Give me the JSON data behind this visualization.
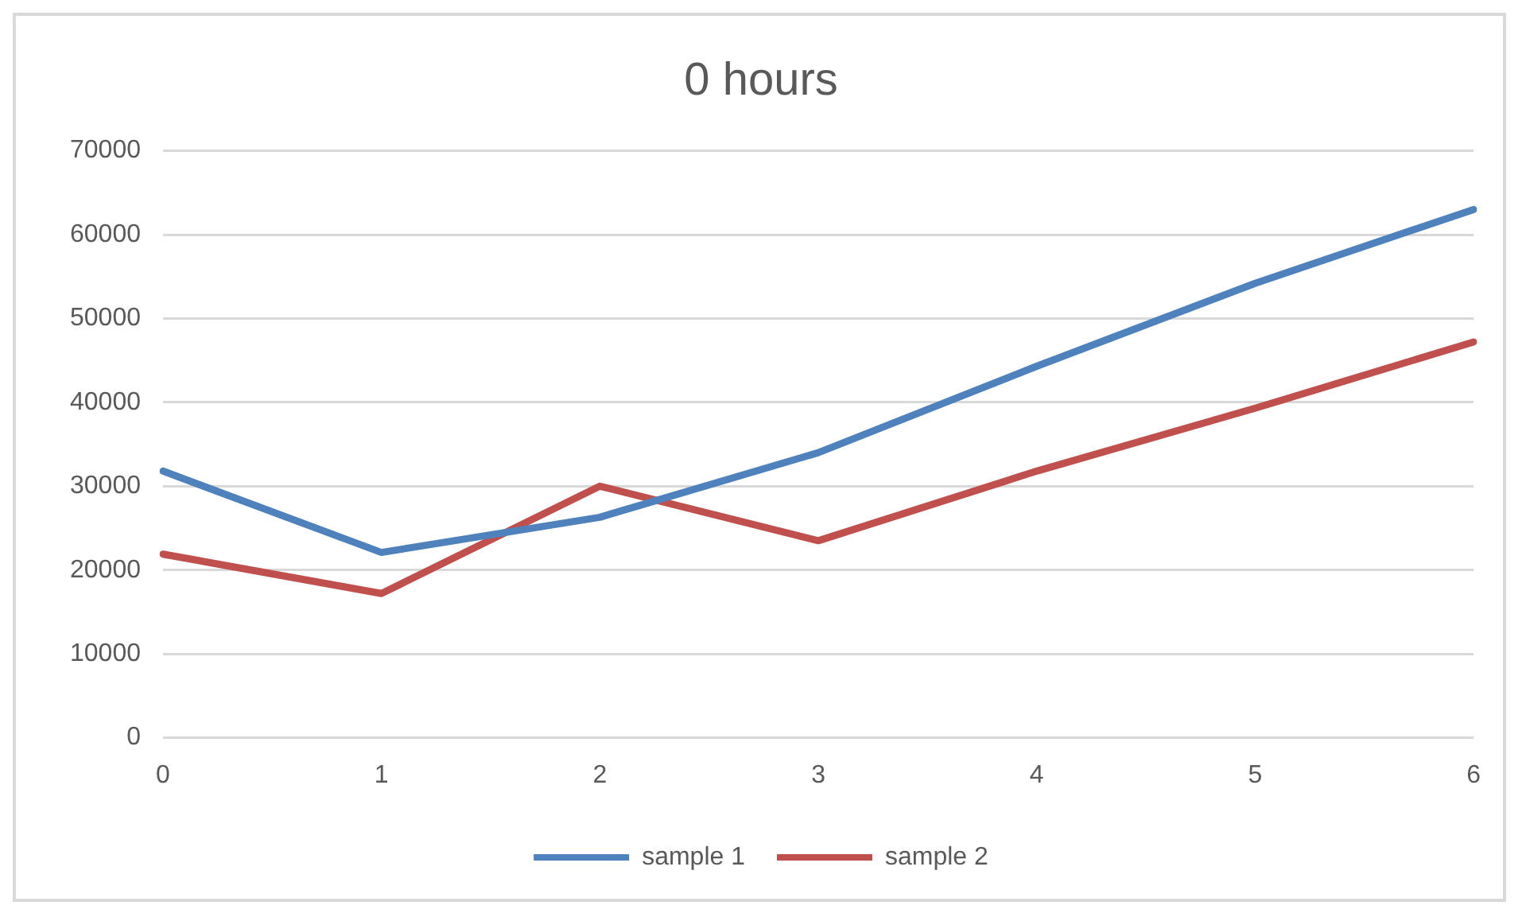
{
  "chart_data": {
    "type": "line",
    "title": "0 hours",
    "categories": [
      "0",
      "1",
      "2",
      "3",
      "4",
      "5",
      "6"
    ],
    "series": [
      {
        "name": "sample 1",
        "color": "#4f81bd",
        "values": [
          31800,
          22100,
          26300,
          34000,
          44300,
          54200,
          63000
        ]
      },
      {
        "name": "sample 2",
        "color": "#c0504d",
        "values": [
          21900,
          17200,
          30000,
          23500,
          31800,
          39300,
          47200
        ]
      }
    ],
    "ylim": [
      0,
      70000
    ],
    "yticks": [
      0,
      10000,
      20000,
      30000,
      40000,
      50000,
      60000,
      70000
    ],
    "grid": "y",
    "legend": "bottom",
    "marker": "none",
    "line_style": "solid"
  }
}
